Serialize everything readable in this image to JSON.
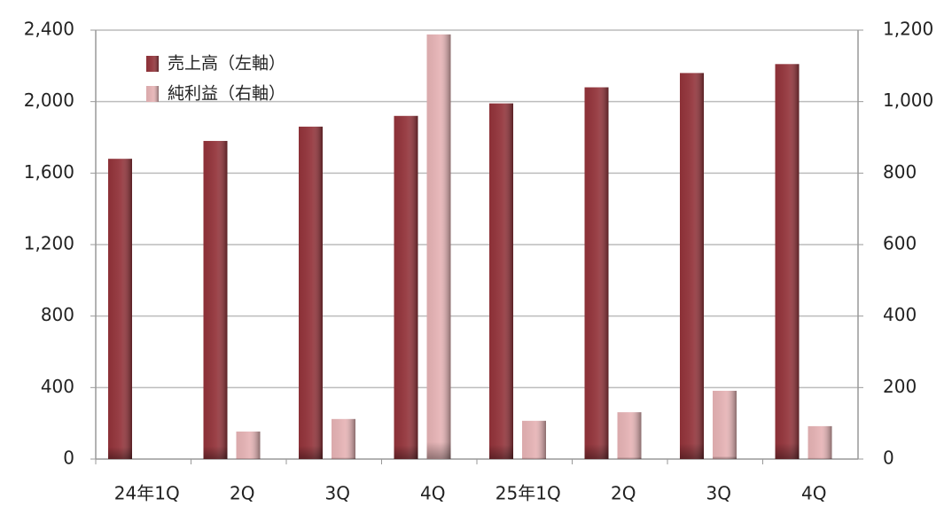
{
  "chart_data": {
    "type": "bar",
    "categories": [
      "24年1Q",
      "2Q",
      "3Q",
      "4Q",
      "25年1Q",
      "2Q",
      "3Q",
      "4Q"
    ],
    "series": [
      {
        "name": "売上高（左軸）",
        "color": "#93333a",
        "values": [
          1680,
          1780,
          1860,
          1920,
          1990,
          2080,
          2160,
          2210
        ]
      },
      {
        "name": "純利益（右軸）",
        "color": "#e6b3b5",
        "axis": "y2",
        "values": [
          null,
          77,
          112,
          1188,
          107,
          131,
          191,
          92
        ]
      }
    ],
    "ylim": [
      0,
      2400
    ],
    "yticks": [
      0,
      400,
      800,
      {
        "value": 1200,
        "label": "1,200"
      },
      {
        "value": 1600,
        "label": "1,600"
      },
      {
        "value": 2000,
        "label": "2,000"
      },
      {
        "value": 2400,
        "label": "2,400"
      }
    ],
    "y2lim": [
      0,
      1200
    ],
    "y2ticks": [
      0,
      200,
      400,
      600,
      800,
      {
        "value": 1000,
        "label": "1,000"
      },
      {
        "value": 1200,
        "label": "1,200"
      }
    ],
    "grid": true
  }
}
